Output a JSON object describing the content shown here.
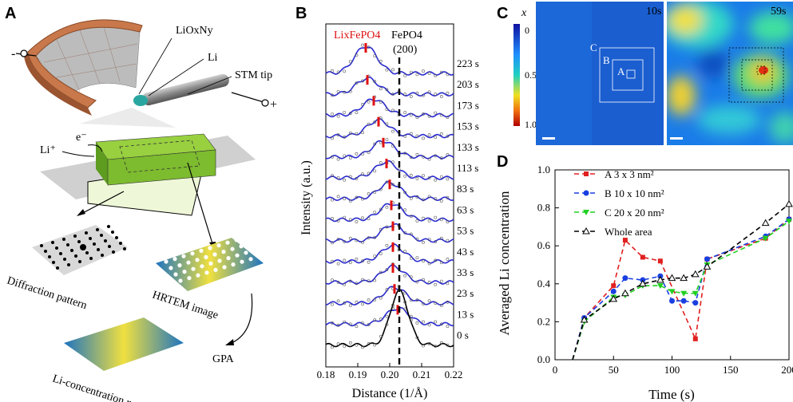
{
  "panels": {
    "a": "A",
    "b": "B",
    "c": "C",
    "d": "D"
  },
  "panelA": {
    "labels": {
      "lioxny": "LiOxNy",
      "li": "Li",
      "stm_tip": "STM tip",
      "minus": "-",
      "plus": "+",
      "electron": "e⁻",
      "li_ion": "Li⁺",
      "diffraction": "Diffraction pattern",
      "hrtem": "HRTEM image",
      "gpa": "GPA",
      "li_map": "Li-concentration map"
    },
    "colors": {
      "electrode": "#c8784a",
      "crystal": "#7dbb2f",
      "tip": "#9a9a9a"
    }
  },
  "panelB": {
    "legend_lixfepo4": "LixFePO4",
    "legend_fepo4": "FePO4",
    "legend_fepo4_hkl": "(200)",
    "ylabel": "Intensity (a.u.)",
    "xlabel": "Distance (1/Å)",
    "x_ticks": [
      "0.18",
      "0.19",
      "0.20",
      "0.21",
      "0.22"
    ],
    "times": [
      "223 s",
      "203 s",
      "173 s",
      "153 s",
      "133 s",
      "113 s",
      "83 s",
      "63 s",
      "53 s",
      "43 s",
      "33 s",
      "23 s",
      "13 s",
      "0 s"
    ],
    "peak_positions": [
      0.1925,
      0.193,
      0.195,
      0.1965,
      0.198,
      0.199,
      0.2,
      0.2005,
      0.201,
      0.201,
      0.201,
      0.2015,
      0.2025,
      0.203
    ],
    "fepo4_line": 0.203,
    "xlim": [
      0.18,
      0.22
    ],
    "colors": {
      "fit": "#2b2bd0",
      "initial": "#000000",
      "marker": "#e01010"
    }
  },
  "panelC": {
    "time_left": "10s",
    "time_right": "59s",
    "cbar_label": "x",
    "cbar_ticks": [
      "0",
      "0.5",
      "1.0"
    ],
    "box_labels": [
      "A",
      "B",
      "C"
    ]
  },
  "chart_data": {
    "type": "line",
    "xlabel": "Time (s)",
    "ylabel": "Averaged Li concentration",
    "xlim": [
      0,
      200
    ],
    "ylim": [
      0,
      1.0
    ],
    "x_ticks": [
      "0",
      "50",
      "100",
      "150",
      "200"
    ],
    "y_ticks": [
      "0.0",
      "0.2",
      "0.4",
      "0.6",
      "0.8",
      "1.0"
    ],
    "legend_placement": "top-left",
    "x": [
      15,
      25,
      50,
      60,
      75,
      90,
      100,
      110,
      120,
      130,
      180,
      200
    ],
    "series": [
      {
        "name": "A 3 x 3 nm²",
        "color": "#e02020",
        "marker": "square",
        "values": [
          0.0,
          0.22,
          0.39,
          0.63,
          0.54,
          0.52,
          null,
          null,
          0.11,
          0.53,
          0.64,
          0.74
        ]
      },
      {
        "name": "B 10 x 10 nm²",
        "color": "#1a3fe0",
        "marker": "circle",
        "values": [
          0.0,
          0.22,
          0.36,
          0.43,
          0.42,
          0.44,
          0.31,
          0.31,
          0.3,
          0.53,
          0.65,
          0.74
        ]
      },
      {
        "name": "C 20 x 20 nm²",
        "color": "#20d020",
        "marker": "triangle-down",
        "values": [
          0.0,
          0.2,
          0.33,
          0.34,
          0.39,
          0.39,
          0.36,
          0.35,
          0.35,
          0.5,
          0.64,
          0.73
        ]
      },
      {
        "name": "Whole area",
        "color": "#000000",
        "marker": "triangle-up-open",
        "values": [
          0.0,
          0.21,
          0.32,
          0.35,
          0.4,
          0.42,
          0.43,
          0.43,
          0.45,
          0.49,
          0.72,
          0.82
        ]
      }
    ]
  }
}
